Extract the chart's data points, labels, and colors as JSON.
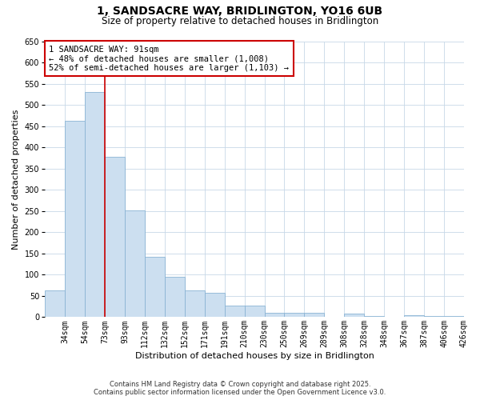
{
  "title": "1, SANDSACRE WAY, BRIDLINGTON, YO16 6UB",
  "subtitle": "Size of property relative to detached houses in Bridlington",
  "xlabel": "Distribution of detached houses by size in Bridlington",
  "ylabel": "Number of detached properties",
  "bar_color": "#ccdff0",
  "bar_edge_color": "#8ab4d4",
  "background_color": "#ffffff",
  "grid_color": "#c8d8e8",
  "categories": [
    "34sqm",
    "54sqm",
    "73sqm",
    "93sqm",
    "112sqm",
    "132sqm",
    "152sqm",
    "171sqm",
    "191sqm",
    "210sqm",
    "230sqm",
    "250sqm",
    "269sqm",
    "289sqm",
    "308sqm",
    "328sqm",
    "348sqm",
    "367sqm",
    "387sqm",
    "406sqm",
    "426sqm"
  ],
  "values": [
    63,
    462,
    530,
    378,
    252,
    143,
    95,
    63,
    57,
    27,
    27,
    10,
    10,
    10,
    0,
    8,
    3,
    0,
    5,
    3,
    3
  ],
  "ylim": [
    0,
    650
  ],
  "yticks": [
    0,
    50,
    100,
    150,
    200,
    250,
    300,
    350,
    400,
    450,
    500,
    550,
    600,
    650
  ],
  "vline_x_index": 3,
  "vline_color": "#cc0000",
  "annotation_title": "1 SANDSACRE WAY: 91sqm",
  "annotation_line1": "← 48% of detached houses are smaller (1,008)",
  "annotation_line2": "52% of semi-detached houses are larger (1,103) →",
  "annotation_box_color": "#ffffff",
  "annotation_box_edge": "#cc0000",
  "footer_line1": "Contains HM Land Registry data © Crown copyright and database right 2025.",
  "footer_line2": "Contains public sector information licensed under the Open Government Licence v3.0.",
  "title_fontsize": 10,
  "subtitle_fontsize": 8.5,
  "axis_label_fontsize": 8,
  "tick_fontsize": 7,
  "annotation_fontsize": 7.5,
  "footer_fontsize": 6
}
